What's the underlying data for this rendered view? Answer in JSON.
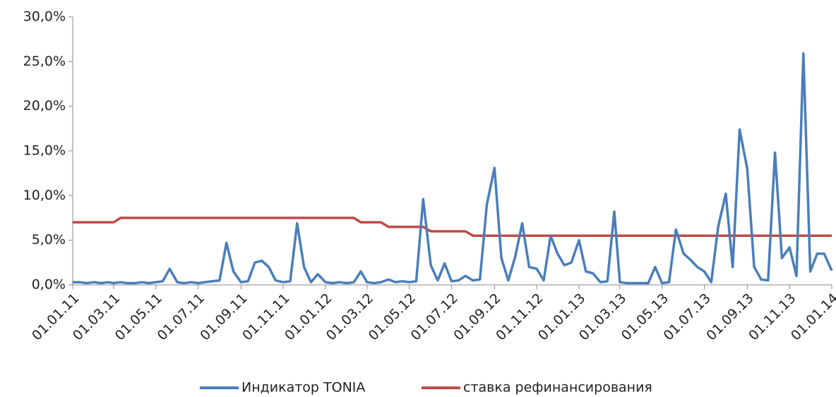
{
  "chart_data": {
    "type": "line",
    "x": [
      "01.01.11",
      "11.01.11",
      "21.01.11",
      "01.02.11",
      "11.02.11",
      "21.02.11",
      "01.03.11",
      "11.03.11",
      "21.03.11",
      "01.04.11",
      "11.04.11",
      "21.04.11",
      "01.05.11",
      "11.05.11",
      "21.05.11",
      "01.06.11",
      "11.06.11",
      "21.06.11",
      "01.07.11",
      "11.07.11",
      "21.07.11",
      "01.08.11",
      "11.08.11",
      "21.08.11",
      "01.09.11",
      "11.09.11",
      "21.09.11",
      "01.10.11",
      "11.10.11",
      "21.10.11",
      "01.11.11",
      "11.11.11",
      "21.11.11",
      "01.12.11",
      "11.12.11",
      "21.12.11",
      "01.01.12",
      "11.01.12",
      "21.01.12",
      "01.02.12",
      "11.02.12",
      "21.02.12",
      "01.03.12",
      "11.03.12",
      "21.03.12",
      "01.04.12",
      "11.04.12",
      "21.04.12",
      "01.05.12",
      "11.05.12",
      "21.05.12",
      "01.06.12",
      "11.06.12",
      "21.06.12",
      "01.07.12",
      "11.07.12",
      "21.07.12",
      "01.08.12",
      "11.08.12",
      "21.08.12",
      "01.09.12",
      "11.09.12",
      "21.09.12",
      "01.10.12",
      "11.10.12",
      "21.10.12",
      "01.11.12",
      "11.11.12",
      "21.11.12",
      "01.12.12",
      "11.12.12",
      "21.12.12",
      "01.01.13",
      "11.01.13",
      "21.01.13",
      "01.02.13",
      "11.02.13",
      "21.02.13",
      "01.03.13",
      "11.03.13",
      "21.03.13",
      "01.04.13",
      "11.04.13",
      "21.04.13",
      "01.05.13",
      "11.05.13",
      "21.05.13",
      "01.06.13",
      "11.06.13",
      "21.06.13",
      "01.07.13",
      "11.07.13",
      "21.07.13",
      "01.08.13",
      "11.08.13",
      "21.08.13",
      "01.09.13",
      "11.09.13",
      "21.09.13",
      "01.10.13",
      "11.10.13",
      "21.10.13",
      "01.11.13",
      "11.11.13",
      "21.11.13",
      "01.12.13",
      "11.12.13",
      "21.12.13",
      "01.01.14"
    ],
    "series": [
      {
        "name": "Индикатор TONIA",
        "color": "#4a7ebb",
        "values": [
          0.3,
          0.3,
          0.2,
          0.3,
          0.2,
          0.3,
          0.2,
          0.3,
          0.2,
          0.2,
          0.3,
          0.2,
          0.3,
          0.4,
          1.8,
          0.3,
          0.2,
          0.3,
          0.2,
          0.3,
          0.4,
          0.5,
          4.7,
          1.5,
          0.3,
          0.4,
          2.5,
          2.7,
          2.0,
          0.5,
          0.3,
          0.4,
          6.9,
          2.0,
          0.3,
          1.2,
          0.3,
          0.2,
          0.3,
          0.2,
          0.3,
          1.5,
          0.3,
          0.2,
          0.3,
          0.6,
          0.3,
          0.4,
          0.3,
          0.4,
          9.6,
          2.2,
          0.5,
          2.4,
          0.4,
          0.5,
          1.0,
          0.5,
          0.6,
          9.0,
          13.1,
          3.0,
          0.5,
          3.2,
          6.9,
          2.0,
          1.8,
          0.5,
          5.5,
          3.5,
          2.2,
          2.5,
          5.0,
          1.5,
          1.3,
          0.3,
          0.4,
          8.2,
          0.3,
          0.2,
          0.2,
          0.2,
          0.2,
          2.0,
          0.2,
          0.3,
          6.2,
          3.5,
          2.8,
          2.0,
          1.5,
          0.3,
          6.5,
          10.2,
          2.0,
          17.4,
          13.0,
          2.0,
          0.6,
          0.5,
          14.8,
          3.0,
          4.2,
          1.0,
          25.9,
          1.5,
          3.5,
          3.5,
          1.6
        ]
      },
      {
        "name": "ставка рефинансирования",
        "color": "#be4b48",
        "values": [
          7,
          7,
          7,
          7,
          7,
          7,
          7,
          7.5,
          7.5,
          7.5,
          7.5,
          7.5,
          7.5,
          7.5,
          7.5,
          7.5,
          7.5,
          7.5,
          7.5,
          7.5,
          7.5,
          7.5,
          7.5,
          7.5,
          7.5,
          7.5,
          7.5,
          7.5,
          7.5,
          7.5,
          7.5,
          7.5,
          7.5,
          7.5,
          7.5,
          7.5,
          7.5,
          7.5,
          7.5,
          7.5,
          7.5,
          7,
          7,
          7,
          7,
          6.5,
          6.5,
          6.5,
          6.5,
          6.5,
          6.5,
          6,
          6,
          6,
          6,
          6,
          6,
          5.5,
          5.5,
          5.5,
          5.5,
          5.5,
          5.5,
          5.5,
          5.5,
          5.5,
          5.5,
          5.5,
          5.5,
          5.5,
          5.5,
          5.5,
          5.5,
          5.5,
          5.5,
          5.5,
          5.5,
          5.5,
          5.5,
          5.5,
          5.5,
          5.5,
          5.5,
          5.5,
          5.5,
          5.5,
          5.5,
          5.5,
          5.5,
          5.5,
          5.5,
          5.5,
          5.5,
          5.5,
          5.5,
          5.5,
          5.5,
          5.5,
          5.5,
          5.5,
          5.5,
          5.5,
          5.5,
          5.5,
          5.5,
          5.5,
          5.5,
          5.5,
          5.5
        ]
      }
    ],
    "xlim": [
      "01.01.11",
      "01.01.14"
    ],
    "xticks": [
      "01.01.11",
      "01.03.11",
      "01.05.11",
      "01.07.11",
      "01.09.11",
      "01.11.11",
      "01.01.12",
      "01.03.12",
      "01.05.12",
      "01.07.12",
      "01.09.12",
      "01.11.12",
      "01.01.13",
      "01.03.13",
      "01.05.13",
      "01.07.13",
      "01.09.13",
      "01.11.13",
      "01.01.14"
    ],
    "ylim": [
      0,
      30
    ],
    "yticks": [
      {
        "value": 0,
        "label": "0,0%"
      },
      {
        "value": 5,
        "label": "5,0%"
      },
      {
        "value": 10,
        "label": "10,0%"
      },
      {
        "value": 15,
        "label": "15,0%"
      },
      {
        "value": 20,
        "label": "20,0%"
      },
      {
        "value": 25,
        "label": "25,0%"
      },
      {
        "value": 30,
        "label": "30,0%"
      }
    ],
    "legend": "bottom"
  }
}
